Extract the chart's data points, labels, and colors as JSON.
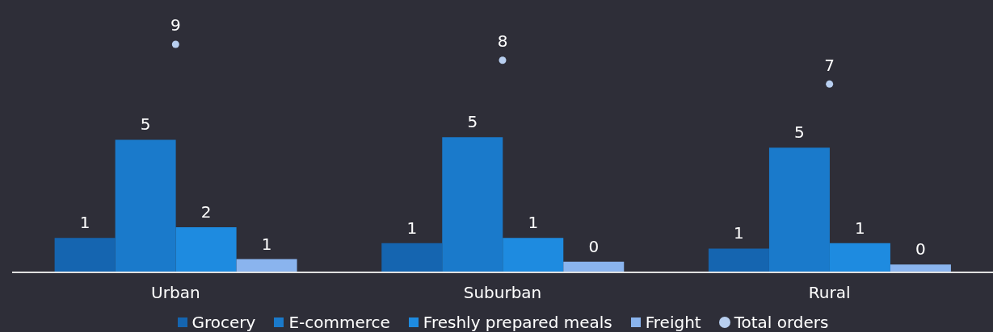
{
  "chart_data": {
    "type": "bar",
    "categories": [
      "Urban",
      "Suburban",
      "Rural"
    ],
    "series": [
      {
        "name": "Grocery",
        "color": "#1565b0",
        "values": [
          1.3,
          1.1,
          0.9
        ],
        "value_labels": [
          "1",
          "1",
          "1"
        ]
      },
      {
        "name": "E-commerce",
        "color": "#1a7acb",
        "values": [
          5.0,
          5.1,
          4.7
        ],
        "value_labels": [
          "5",
          "5",
          "5"
        ]
      },
      {
        "name": "Freshly prepared meals",
        "color": "#1e8be0",
        "values": [
          1.7,
          1.3,
          1.1
        ],
        "value_labels": [
          "2",
          "1",
          "1"
        ]
      },
      {
        "name": "Freight",
        "color": "#8ab4ee",
        "values": [
          0.5,
          0.4,
          0.3
        ],
        "value_labels": [
          "1",
          "0",
          "0"
        ]
      },
      {
        "name": "Total orders",
        "type": "scatter",
        "color": "#b8cff0",
        "values": [
          8.6,
          8.0,
          7.1
        ],
        "value_labels": [
          "9",
          "8",
          "7"
        ]
      }
    ],
    "tick_labels": "x",
    "legend": "bottom",
    "grid": false,
    "marker": "circle"
  }
}
